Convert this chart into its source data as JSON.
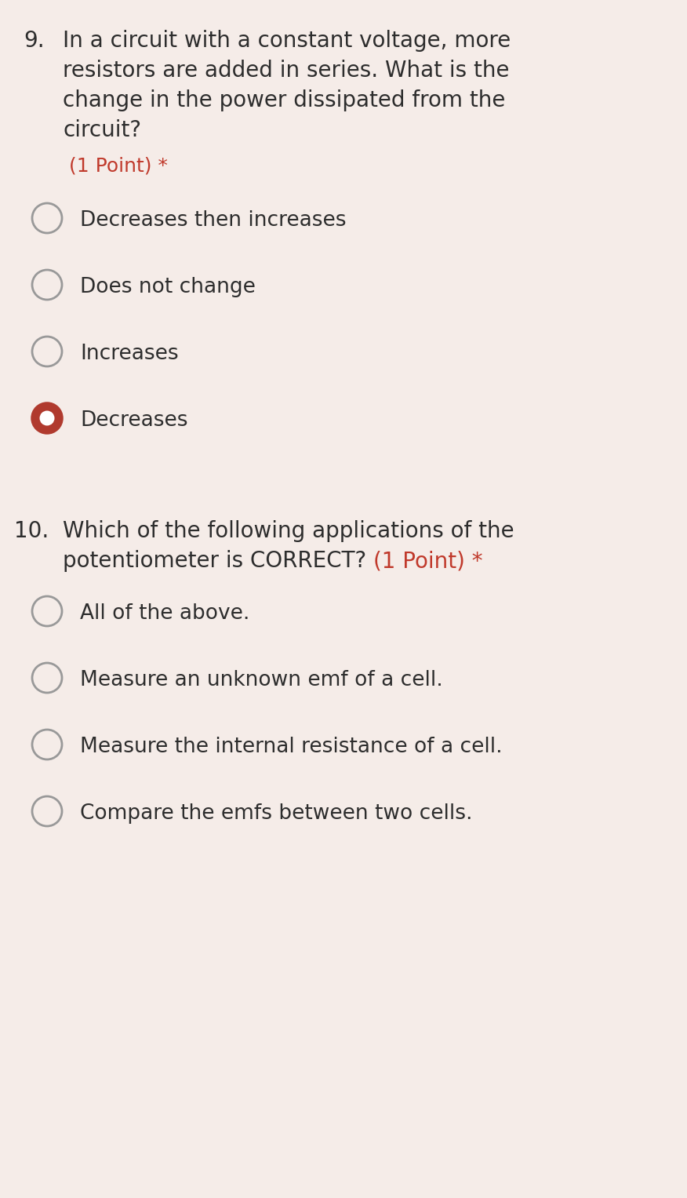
{
  "background_color": "#f5ece8",
  "text_color": "#2d2d2d",
  "accent_color": "#c0392b",
  "q9_number": "9.",
  "q9_text_lines": [
    "In a circuit with a constant voltage, more",
    "resistors are added in series. What is the",
    "change in the power dissipated from the",
    "circuit?"
  ],
  "q9_point": "(1 Point) *",
  "q9_options": [
    "Decreases then increases",
    "Does not change",
    "Increases",
    "Decreases"
  ],
  "q9_selected": 3,
  "q10_number": "10.",
  "q10_text_line1": "Which of the following applications of the",
  "q10_text_line2": "potentiometer is CORRECT?",
  "q10_point": "(1 Point) *",
  "q10_options": [
    "All of the above.",
    "Measure an unknown emf of a cell.",
    "Measure the internal resistance of a cell.",
    "Compare the emfs between two cells."
  ],
  "q10_selected": -1,
  "radio_selected_fill": "#b03a2e",
  "radio_unselected_fill": "#f5ece8",
  "radio_border_unselected": "#999999",
  "radio_selected_border": "#b03a2e",
  "font_size_question": 20,
  "font_size_option": 19,
  "font_size_point": 18,
  "font_size_number": 20
}
